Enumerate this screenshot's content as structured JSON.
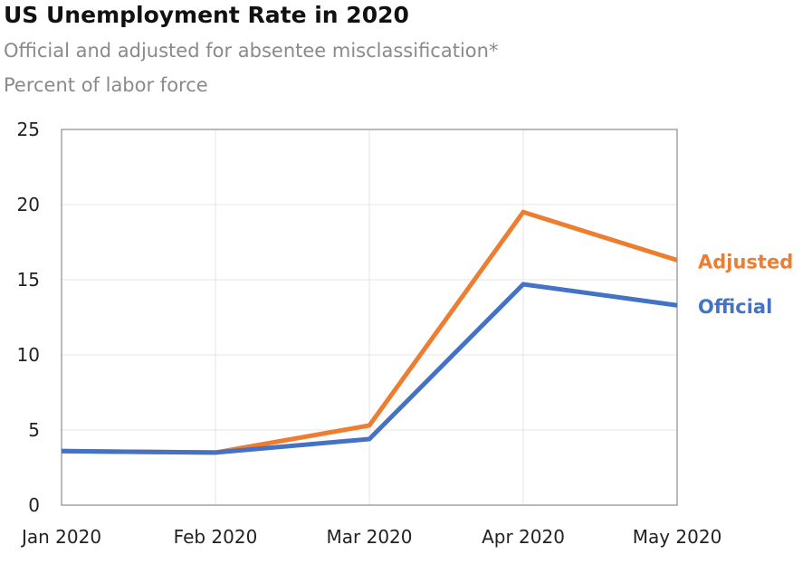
{
  "chart_data": {
    "type": "line",
    "title": "US Unemployment Rate in 2020",
    "subtitle": "Official and adjusted for absentee misclassification*",
    "ylabel": "Percent of labor force",
    "xlabel": "",
    "categories": [
      "Jan 2020",
      "Feb 2020",
      "Mar 2020",
      "Apr 2020",
      "May 2020"
    ],
    "ylim": [
      0,
      25
    ],
    "yticks": [
      "0",
      "5",
      "10",
      "15",
      "20",
      "25"
    ],
    "grid": true,
    "legend": "inline labels at right end of lines",
    "series": [
      {
        "name": "Adjusted",
        "color": "#ED7D31",
        "values": [
          3.6,
          3.5,
          5.3,
          19.5,
          16.3
        ]
      },
      {
        "name": "Official",
        "color": "#4472C4",
        "values": [
          3.6,
          3.5,
          4.4,
          14.7,
          13.3
        ]
      }
    ]
  }
}
